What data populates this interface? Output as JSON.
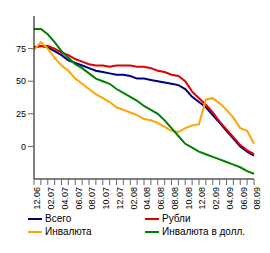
{
  "chart_data": {
    "type": "line",
    "categories": [
      "12.06",
      null,
      "02.07",
      null,
      "04.07",
      null,
      "06.07",
      null,
      "08.07",
      null,
      "10.07",
      null,
      "12.07",
      null,
      "02.08",
      null,
      "04.08",
      null,
      "06.08",
      null,
      "08.08",
      null,
      "10.08",
      null,
      "12.08",
      null,
      "02.09",
      null,
      "04.09",
      null,
      "06.09",
      null,
      "08.09"
    ],
    "series": [
      {
        "name": "Всего",
        "color": "#000080",
        "values": [
          76,
          77,
          76,
          73,
          70,
          66,
          64,
          62,
          60,
          58,
          57,
          56,
          55,
          55,
          54,
          52,
          52,
          51,
          50,
          49,
          48,
          47,
          44,
          38,
          34,
          30,
          24,
          18,
          12,
          6,
          0,
          -4,
          -7
        ]
      },
      {
        "name": "Рубли",
        "color": "#e00000",
        "values": [
          76,
          77,
          77,
          75,
          72,
          70,
          67,
          65,
          63,
          62,
          62,
          61,
          62,
          62,
          62,
          61,
          61,
          60,
          58,
          57,
          55,
          54,
          50,
          42,
          37,
          32,
          26,
          19,
          13,
          7,
          1,
          -3,
          -6
        ]
      },
      {
        "name": "Инвалюта",
        "color": "#ffa500",
        "values": [
          74,
          80,
          75,
          68,
          62,
          58,
          52,
          48,
          44,
          40,
          37,
          34,
          30,
          28,
          26,
          24,
          21,
          20,
          18,
          15,
          12,
          11,
          14,
          16,
          17,
          36,
          37,
          33,
          28,
          22,
          14,
          12,
          2
        ]
      },
      {
        "name": "Инвалюта в долл.",
        "color": "#008000",
        "values": [
          90,
          90,
          86,
          80,
          73,
          68,
          63,
          60,
          56,
          52,
          50,
          48,
          44,
          41,
          38,
          35,
          31,
          28,
          25,
          20,
          14,
          8,
          2,
          -1,
          -4,
          -6,
          -8,
          -10,
          -12,
          -14,
          -16,
          -19,
          -21
        ]
      }
    ],
    "ylim": [
      -25,
      100
    ],
    "yticks": [
      0,
      25,
      50,
      75
    ],
    "grid": false,
    "legend": "bottom"
  }
}
